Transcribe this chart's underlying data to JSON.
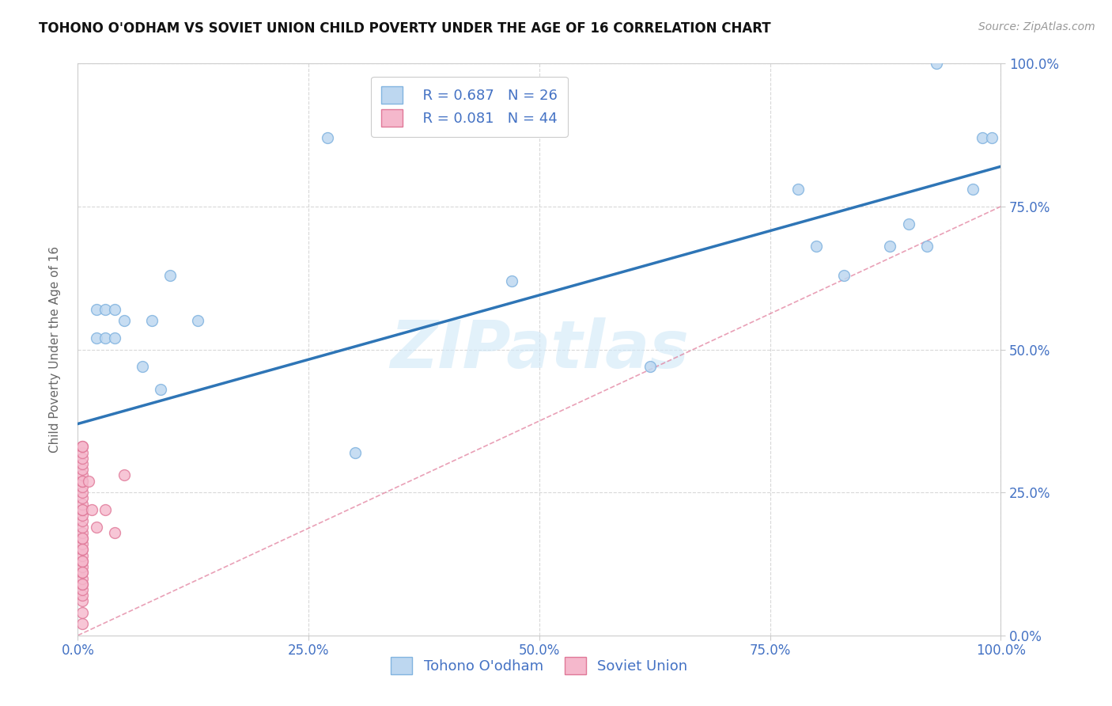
{
  "title": "TOHONO O'ODHAM VS SOVIET UNION CHILD POVERTY UNDER THE AGE OF 16 CORRELATION CHART",
  "source": "Source: ZipAtlas.com",
  "ylabel": "Child Poverty Under the Age of 16",
  "xlim": [
    0,
    1
  ],
  "ylim": [
    0,
    1
  ],
  "xticks": [
    0,
    0.25,
    0.5,
    0.75,
    1.0
  ],
  "yticks": [
    0,
    0.25,
    0.5,
    0.75,
    1.0
  ],
  "xticklabels": [
    "0.0%",
    "25.0%",
    "50.0%",
    "75.0%",
    "100.0%"
  ],
  "yticklabels": [
    "0.0%",
    "25.0%",
    "50.0%",
    "75.0%",
    "100.0%"
  ],
  "tohono_color": "#bdd7f0",
  "tohono_edge": "#82b4e0",
  "soviet_color": "#f5b8cc",
  "soviet_edge": "#e07898",
  "legend_color": "#4472c4",
  "watermark": "ZIPatlas",
  "tohono_x": [
    0.02,
    0.02,
    0.03,
    0.03,
    0.04,
    0.04,
    0.05,
    0.07,
    0.08,
    0.09,
    0.1,
    0.13,
    0.27,
    0.3,
    0.47,
    0.62,
    0.78,
    0.8,
    0.83,
    0.88,
    0.9,
    0.92,
    0.93,
    0.97,
    0.98,
    0.99
  ],
  "tohono_y": [
    0.57,
    0.52,
    0.57,
    0.52,
    0.57,
    0.52,
    0.55,
    0.47,
    0.55,
    0.43,
    0.63,
    0.55,
    0.87,
    0.32,
    0.62,
    0.47,
    0.78,
    0.68,
    0.63,
    0.68,
    0.72,
    0.68,
    1.0,
    0.78,
    0.87,
    0.87
  ],
  "soviet_x": [
    0.005,
    0.005,
    0.005,
    0.005,
    0.005,
    0.005,
    0.005,
    0.005,
    0.005,
    0.005,
    0.005,
    0.005,
    0.005,
    0.005,
    0.005,
    0.005,
    0.005,
    0.005,
    0.005,
    0.005,
    0.005,
    0.005,
    0.005,
    0.005,
    0.005,
    0.005,
    0.005,
    0.005,
    0.005,
    0.005,
    0.005,
    0.005,
    0.005,
    0.005,
    0.005,
    0.005,
    0.005,
    0.005,
    0.012,
    0.015,
    0.02,
    0.03,
    0.04,
    0.05
  ],
  "soviet_y": [
    0.02,
    0.04,
    0.06,
    0.07,
    0.08,
    0.09,
    0.1,
    0.11,
    0.12,
    0.13,
    0.14,
    0.15,
    0.16,
    0.17,
    0.18,
    0.19,
    0.2,
    0.21,
    0.22,
    0.23,
    0.24,
    0.25,
    0.26,
    0.27,
    0.28,
    0.29,
    0.3,
    0.31,
    0.32,
    0.33,
    0.09,
    0.13,
    0.17,
    0.22,
    0.27,
    0.33,
    0.15,
    0.11,
    0.27,
    0.22,
    0.19,
    0.22,
    0.18,
    0.28
  ],
  "tohono_trendline_x": [
    0.0,
    1.0
  ],
  "tohono_trendline_y": [
    0.37,
    0.82
  ],
  "soviet_trendline_x": [
    0.0,
    1.0
  ],
  "soviet_trendline_y": [
    0.0,
    0.75
  ],
  "background_color": "#ffffff",
  "grid_color": "#d8d8d8",
  "tick_color": "#4472c4",
  "title_fontsize": 12,
  "marker_size": 100
}
